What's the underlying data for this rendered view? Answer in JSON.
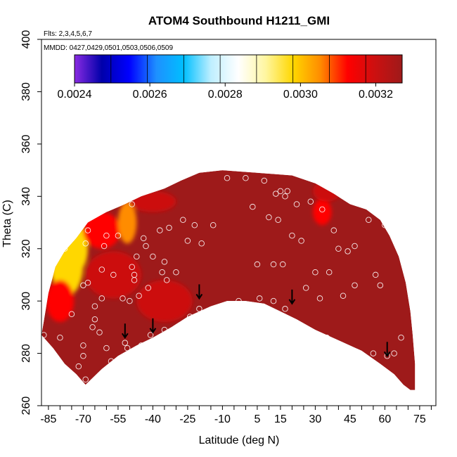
{
  "title": "ATOM4 Southbound H1211_GMI",
  "flights_note": "Flts: 2,3,4,5,6,7",
  "dates_note": "MMDD: 0427,0429,0501,0503,0506,0509",
  "chart_data": {
    "type": "heatmap",
    "title": "ATOM4 Southbound H1211_GMI",
    "xlabel": "Latitude (deg N)",
    "ylabel": "Theta (C)",
    "xlim": [
      -88,
      82
    ],
    "ylim": [
      260,
      400
    ],
    "x_ticks": [
      -85,
      -70,
      -55,
      -40,
      -25,
      -10,
      5,
      15,
      30,
      45,
      60,
      75
    ],
    "x_minor_step": 5,
    "y_ticks": [
      260,
      280,
      300,
      320,
      340,
      360,
      380,
      400
    ],
    "grid": false,
    "colorbar": {
      "placement": "top-inside",
      "min": 0.0024,
      "max": 0.00327,
      "ticks": [
        0.0024,
        0.0026,
        0.0028,
        0.003,
        0.0032
      ],
      "tick_labels": [
        "0.0024",
        "0.0026",
        "0.0028",
        "0.0030",
        "0.0032"
      ],
      "colors": [
        "#8a2be2",
        "#0000aa",
        "#0000ff",
        "#1e90ff",
        "#00bfff",
        "#bfefff",
        "#ffffff",
        "#fff6a0",
        "#ffd700",
        "#ff8c00",
        "#ff0000",
        "#cc1010",
        "#9e1a1a"
      ]
    },
    "field": {
      "background_value": 0.00326,
      "upper_boundary": [
        [
          -88,
          287
        ],
        [
          -85,
          303
        ],
        [
          -82,
          313
        ],
        [
          -78,
          319
        ],
        [
          -73,
          324
        ],
        [
          -68,
          330
        ],
        [
          -60,
          334
        ],
        [
          -52,
          337
        ],
        [
          -45,
          340
        ],
        [
          -35,
          343
        ],
        [
          -28,
          346
        ],
        [
          -20,
          349
        ],
        [
          -10,
          350
        ],
        [
          5,
          349
        ],
        [
          20,
          348
        ],
        [
          30,
          345
        ],
        [
          38,
          341
        ],
        [
          45,
          337
        ],
        [
          52,
          335
        ],
        [
          58,
          331
        ],
        [
          62,
          325
        ],
        [
          66,
          317
        ],
        [
          69,
          307
        ],
        [
          71,
          296
        ],
        [
          72,
          287
        ],
        [
          73,
          276
        ],
        [
          73,
          266
        ]
      ],
      "lower_boundary": [
        [
          -88,
          287
        ],
        [
          -83,
          282
        ],
        [
          -78,
          276
        ],
        [
          -73,
          272
        ],
        [
          -69,
          268
        ],
        [
          -62,
          274
        ],
        [
          -55,
          279
        ],
        [
          -47,
          283
        ],
        [
          -40,
          286
        ],
        [
          -32,
          290
        ],
        [
          -25,
          294
        ],
        [
          -15,
          298
        ],
        [
          -8,
          300
        ],
        [
          0,
          300
        ],
        [
          8,
          299
        ],
        [
          15,
          296
        ],
        [
          22,
          293
        ],
        [
          30,
          289
        ],
        [
          40,
          285
        ],
        [
          50,
          281
        ],
        [
          58,
          276
        ],
        [
          64,
          272
        ],
        [
          68,
          268
        ],
        [
          71,
          266
        ],
        [
          73,
          266
        ]
      ],
      "anomalies": [
        {
          "lat": -77,
          "theta": 314,
          "value": 0.003,
          "radius": [
            7,
            12
          ]
        },
        {
          "lat": -73,
          "theta": 320,
          "value": 0.00296,
          "radius": [
            5,
            9
          ]
        },
        {
          "lat": -62,
          "theta": 327,
          "value": 0.00312,
          "radius": [
            8,
            7
          ]
        },
        {
          "lat": -51,
          "theta": 330,
          "value": 0.00306,
          "radius": [
            4,
            8
          ]
        },
        {
          "lat": -57,
          "theta": 310,
          "value": 0.00318,
          "radius": [
            12,
            9
          ]
        },
        {
          "lat": -80,
          "theta": 300,
          "value": 0.00312,
          "radius": [
            6,
            8
          ]
        },
        {
          "lat": -40,
          "theta": 338,
          "value": 0.0032,
          "radius": [
            10,
            4
          ]
        },
        {
          "lat": 33,
          "theta": 334,
          "value": 0.0031,
          "radius": [
            4,
            5
          ]
        },
        {
          "lat": 35,
          "theta": 342,
          "value": 0.00318,
          "radius": [
            6,
            4
          ]
        },
        {
          "lat": -35,
          "theta": 300,
          "value": 0.0032,
          "radius": [
            12,
            8
          ]
        }
      ]
    },
    "observations": [
      [
        -87,
        287
      ],
      [
        -80,
        286
      ],
      [
        -78,
        320
      ],
      [
        -75,
        295
      ],
      [
        -72,
        275
      ],
      [
        -70,
        283
      ],
      [
        -70,
        279
      ],
      [
        -69,
        270
      ],
      [
        -70,
        306
      ],
      [
        -68,
        307
      ],
      [
        -68,
        327
      ],
      [
        -69,
        322
      ],
      [
        -65,
        298
      ],
      [
        -66,
        290
      ],
      [
        -65,
        293
      ],
      [
        -63,
        288
      ],
      [
        -62,
        301
      ],
      [
        -62,
        312
      ],
      [
        -61,
        321
      ],
      [
        -60,
        325
      ],
      [
        -60,
        282
      ],
      [
        -58,
        277
      ],
      [
        -57,
        310
      ],
      [
        -55,
        325
      ],
      [
        -53,
        301
      ],
      [
        -52,
        284
      ],
      [
        -51,
        282
      ],
      [
        -50,
        300
      ],
      [
        -49,
        313
      ],
      [
        -49,
        337
      ],
      [
        -48,
        308
      ],
      [
        -48,
        310
      ],
      [
        -47,
        317
      ],
      [
        -46,
        302
      ],
      [
        -45,
        283
      ],
      [
        -44,
        324
      ],
      [
        -43,
        321
      ],
      [
        -42,
        305
      ],
      [
        -41,
        287
      ],
      [
        -40,
        317
      ],
      [
        -37,
        327
      ],
      [
        -36,
        311
      ],
      [
        -35,
        289
      ],
      [
        -35,
        315
      ],
      [
        -34,
        308
      ],
      [
        -33,
        328
      ],
      [
        -30,
        311
      ],
      [
        -27,
        331
      ],
      [
        -25,
        323
      ],
      [
        -24,
        294
      ],
      [
        -22,
        329
      ],
      [
        -20,
        297
      ],
      [
        -19,
        322
      ],
      [
        -14,
        329
      ],
      [
        -8,
        347
      ],
      [
        -3,
        300
      ],
      [
        0,
        347
      ],
      [
        3,
        336
      ],
      [
        5,
        314
      ],
      [
        6,
        301
      ],
      [
        8,
        346
      ],
      [
        10,
        332
      ],
      [
        12,
        314
      ],
      [
        12,
        300
      ],
      [
        13,
        341
      ],
      [
        14,
        331
      ],
      [
        15,
        342
      ],
      [
        16,
        314
      ],
      [
        17,
        340
      ],
      [
        17,
        297
      ],
      [
        18,
        342
      ],
      [
        20,
        325
      ],
      [
        22,
        337
      ],
      [
        24,
        323
      ],
      [
        26,
        305
      ],
      [
        28,
        338
      ],
      [
        30,
        311
      ],
      [
        32,
        301
      ],
      [
        33,
        335
      ],
      [
        35,
        286
      ],
      [
        36,
        311
      ],
      [
        38,
        327
      ],
      [
        40,
        320
      ],
      [
        42,
        302
      ],
      [
        44,
        319
      ],
      [
        47,
        321
      ],
      [
        47,
        306
      ],
      [
        50,
        279
      ],
      [
        53,
        331
      ],
      [
        55,
        280
      ],
      [
        56,
        310
      ],
      [
        58,
        306
      ],
      [
        60,
        329
      ],
      [
        61,
        279
      ],
      [
        64,
        280
      ],
      [
        67,
        286
      ]
    ],
    "arrows": [
      [
        -52,
        286
      ],
      [
        -40,
        288
      ],
      [
        -20,
        301
      ],
      [
        20,
        299
      ],
      [
        61,
        279
      ]
    ]
  }
}
